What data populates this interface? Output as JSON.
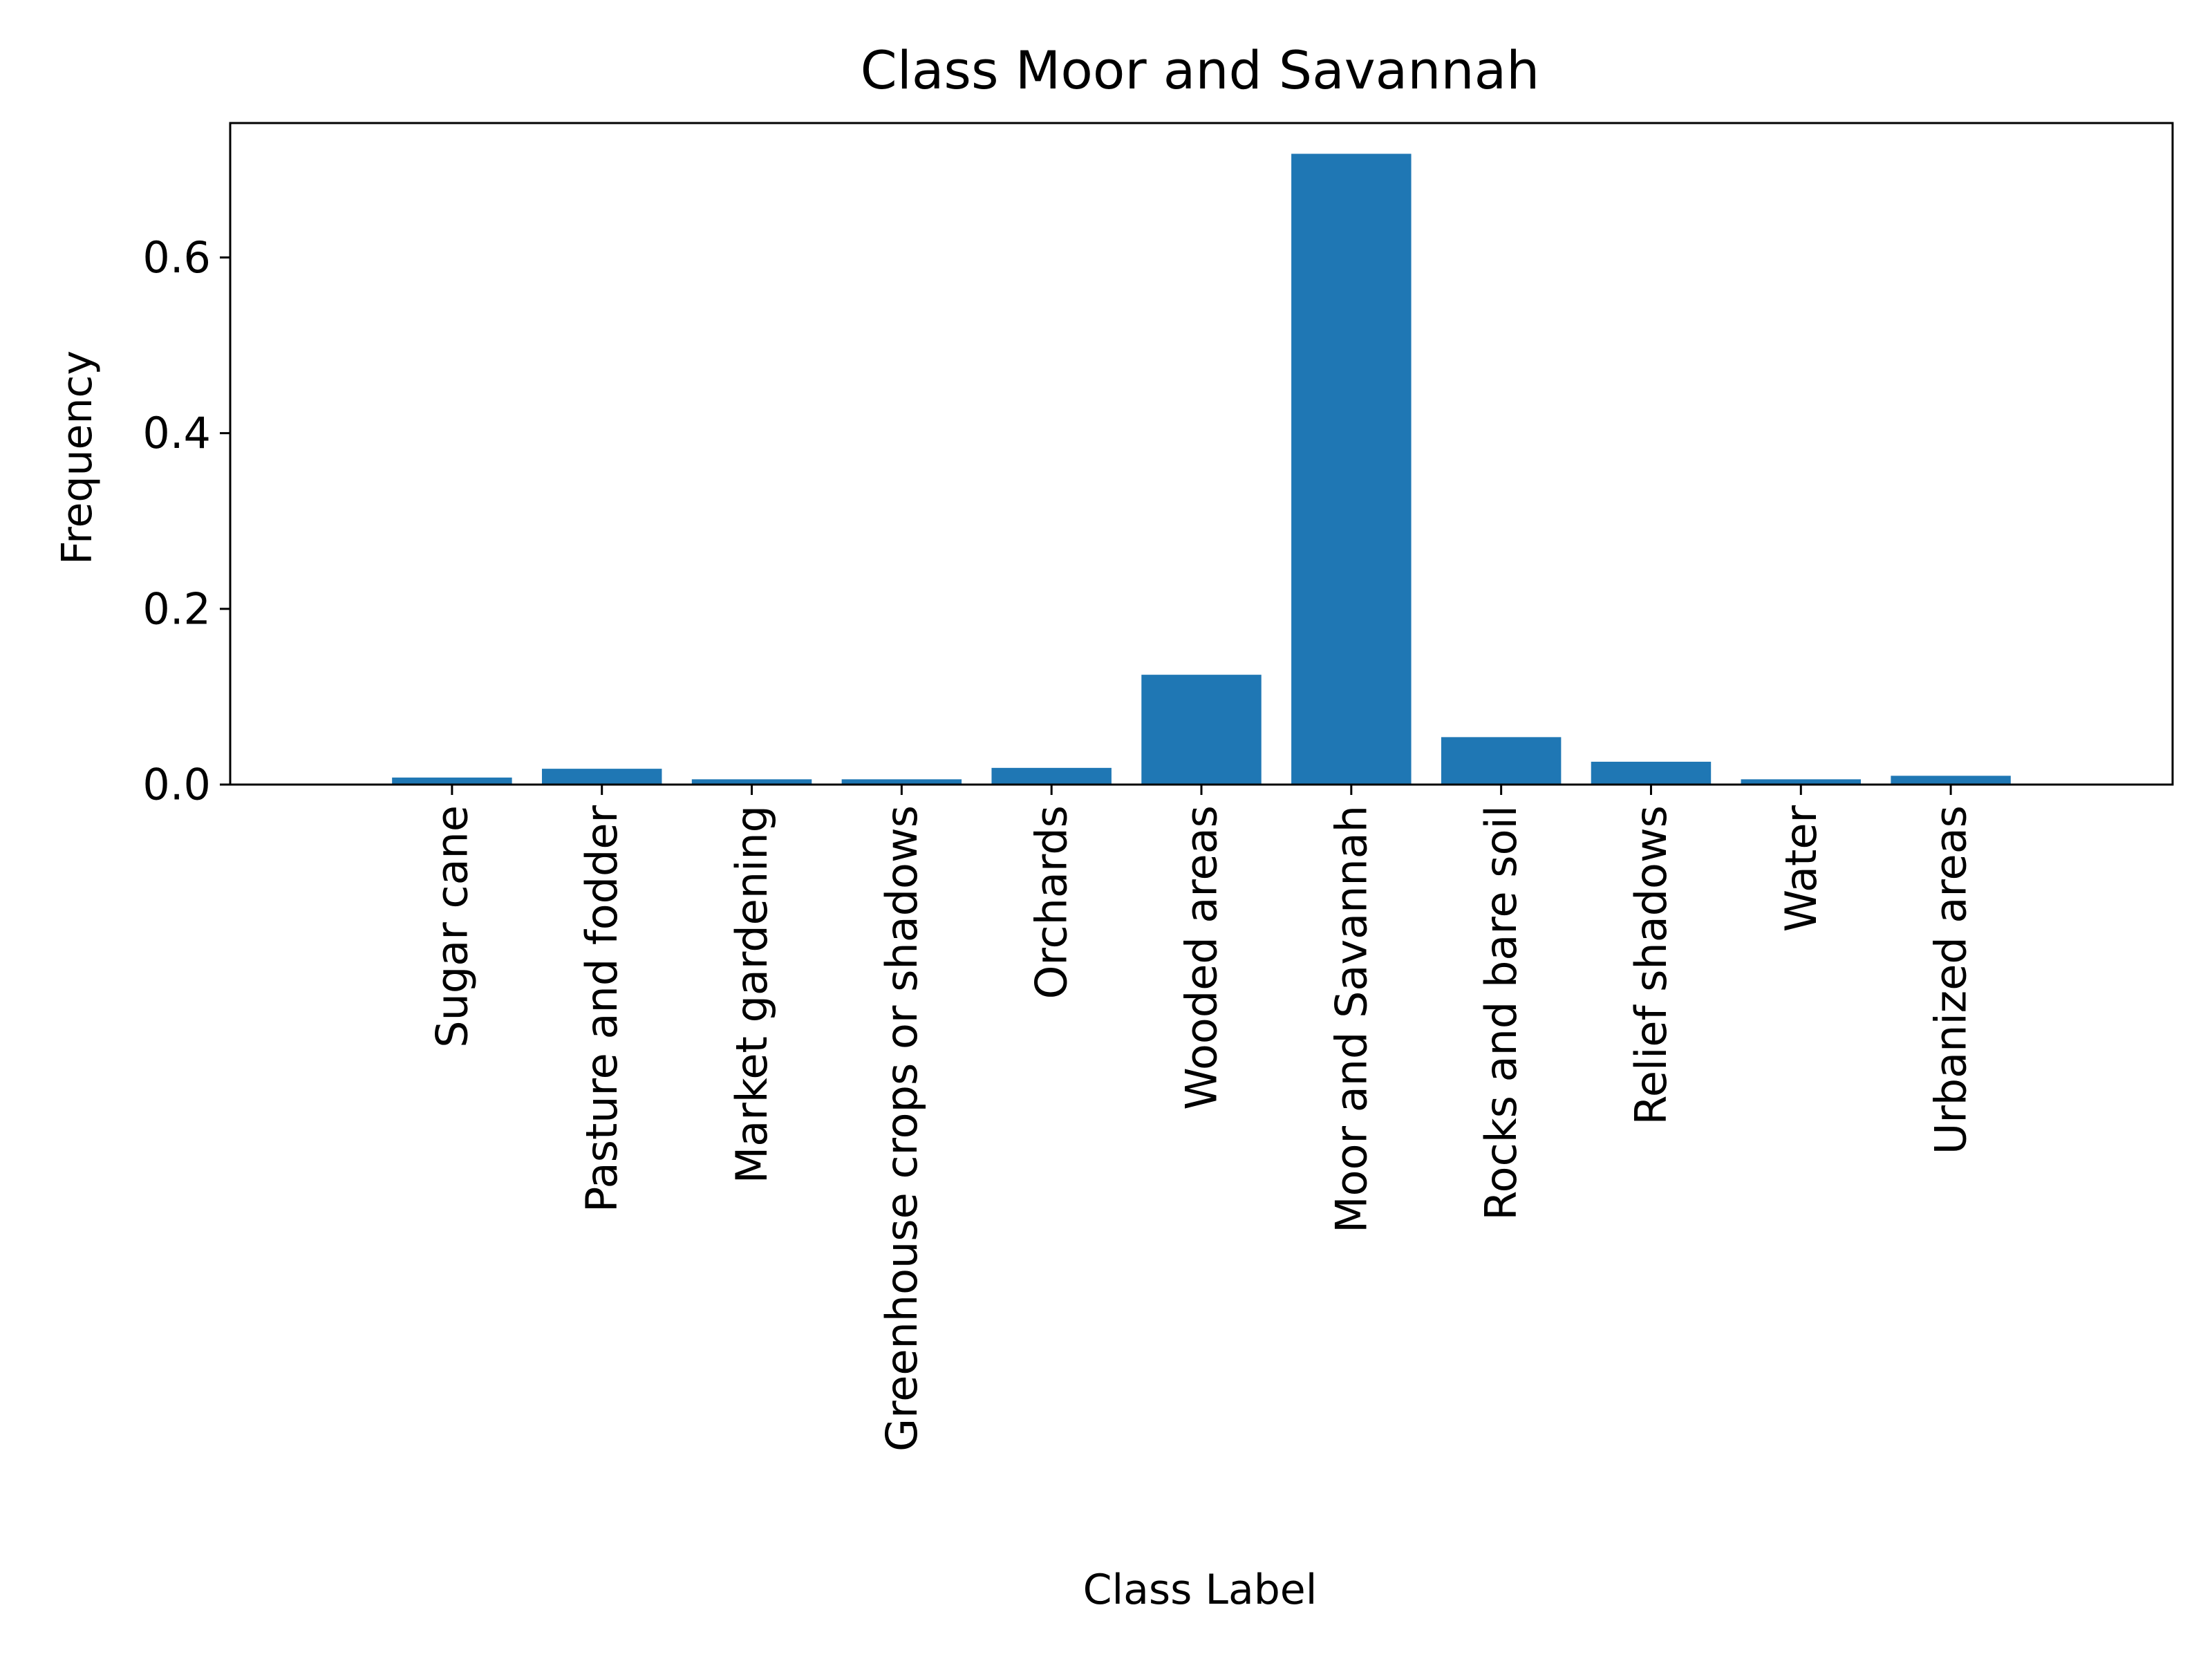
{
  "chart_data": {
    "type": "bar",
    "title": "Class Moor and Savannah",
    "xlabel": "Class Label",
    "ylabel": "Frequency",
    "ylim": [
      0,
      0.753
    ],
    "yticks": [
      0.0,
      0.2,
      0.4,
      0.6
    ],
    "ytick_labels": [
      "0.0",
      "0.2",
      "0.4",
      "0.6"
    ],
    "grid": false,
    "legend": "none",
    "bar_color": "#1f77b4",
    "categories": [
      "Sugar cane",
      "Pasture and fodder",
      "Market gardening",
      "Greenhouse crops or shadows",
      "Orchards",
      "Wooded areas",
      "Moor and Savannah",
      "Rocks and bare soil",
      "Relief shadows",
      "Water",
      "Urbanized areas"
    ],
    "values": [
      0.008,
      0.018,
      0.006,
      0.006,
      0.019,
      0.125,
      0.718,
      0.054,
      0.026,
      0.006,
      0.01
    ]
  }
}
